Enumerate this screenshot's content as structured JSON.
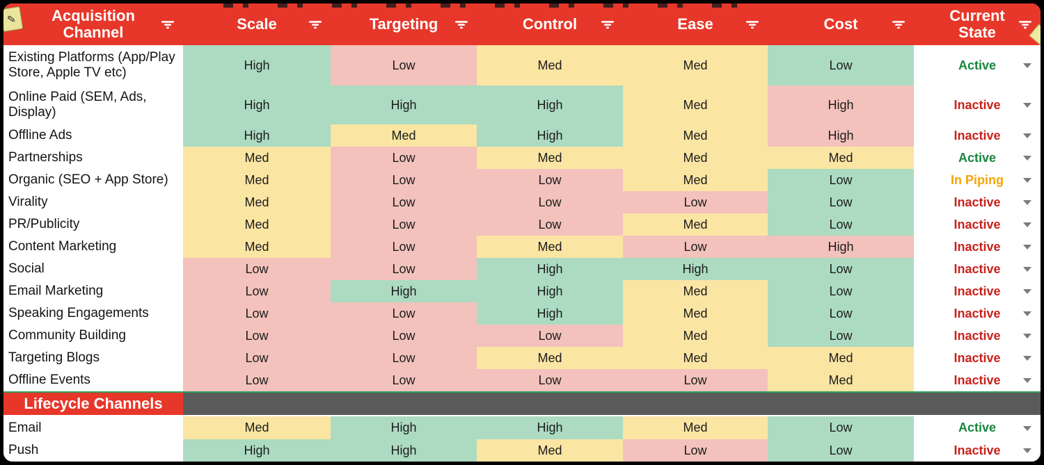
{
  "table": {
    "columns": [
      {
        "key": "channel",
        "label": "Acquisition Channel"
      },
      {
        "key": "scale",
        "label": "Scale"
      },
      {
        "key": "targeting",
        "label": "Targeting"
      },
      {
        "key": "control",
        "label": "Control"
      },
      {
        "key": "ease",
        "label": "Ease"
      },
      {
        "key": "cost",
        "label": "Cost"
      },
      {
        "key": "state",
        "label": "Current State"
      }
    ],
    "sections": [
      {
        "name": "acquisition-channels",
        "rows": [
          {
            "channel": "Existing Platforms (App/Play Store, Apple TV etc)",
            "ratings": [
              {
                "value": "High",
                "tone": "green"
              },
              {
                "value": "Low",
                "tone": "pink"
              },
              {
                "value": "Med",
                "tone": "yellow"
              },
              {
                "value": "Med",
                "tone": "yellow"
              },
              {
                "value": "Low",
                "tone": "green"
              }
            ],
            "state": {
              "label": "Active",
              "tone": "active"
            }
          },
          {
            "channel": "Online Paid (SEM, Ads, Display)",
            "ratings": [
              {
                "value": "High",
                "tone": "green"
              },
              {
                "value": "High",
                "tone": "green"
              },
              {
                "value": "High",
                "tone": "green"
              },
              {
                "value": "Med",
                "tone": "yellow"
              },
              {
                "value": "High",
                "tone": "pink"
              }
            ],
            "state": {
              "label": "Inactive",
              "tone": "inactive"
            }
          },
          {
            "channel": "Offline Ads",
            "ratings": [
              {
                "value": "High",
                "tone": "green"
              },
              {
                "value": "Med",
                "tone": "yellow"
              },
              {
                "value": "High",
                "tone": "green"
              },
              {
                "value": "Med",
                "tone": "yellow"
              },
              {
                "value": "High",
                "tone": "pink"
              }
            ],
            "state": {
              "label": "Inactive",
              "tone": "inactive"
            }
          },
          {
            "channel": "Partnerships",
            "ratings": [
              {
                "value": "Med",
                "tone": "yellow"
              },
              {
                "value": "Low",
                "tone": "pink"
              },
              {
                "value": "Med",
                "tone": "yellow"
              },
              {
                "value": "Med",
                "tone": "yellow"
              },
              {
                "value": "Med",
                "tone": "yellow"
              }
            ],
            "state": {
              "label": "Active",
              "tone": "active"
            }
          },
          {
            "channel": "Organic (SEO + App Store)",
            "ratings": [
              {
                "value": "Med",
                "tone": "yellow"
              },
              {
                "value": "Low",
                "tone": "pink"
              },
              {
                "value": "Low",
                "tone": "pink"
              },
              {
                "value": "Med",
                "tone": "yellow"
              },
              {
                "value": "Low",
                "tone": "green"
              }
            ],
            "state": {
              "label": "In Piping",
              "tone": "piping"
            }
          },
          {
            "channel": "Virality",
            "ratings": [
              {
                "value": "Med",
                "tone": "yellow"
              },
              {
                "value": "Low",
                "tone": "pink"
              },
              {
                "value": "Low",
                "tone": "pink"
              },
              {
                "value": "Low",
                "tone": "pink"
              },
              {
                "value": "Low",
                "tone": "green"
              }
            ],
            "state": {
              "label": "Inactive",
              "tone": "inactive"
            }
          },
          {
            "channel": "PR/Publicity",
            "ratings": [
              {
                "value": "Med",
                "tone": "yellow"
              },
              {
                "value": "Low",
                "tone": "pink"
              },
              {
                "value": "Low",
                "tone": "pink"
              },
              {
                "value": "Med",
                "tone": "yellow"
              },
              {
                "value": "Low",
                "tone": "green"
              }
            ],
            "state": {
              "label": "Inactive",
              "tone": "inactive"
            }
          },
          {
            "channel": "Content Marketing",
            "ratings": [
              {
                "value": "Med",
                "tone": "yellow"
              },
              {
                "value": "Low",
                "tone": "pink"
              },
              {
                "value": "Med",
                "tone": "yellow"
              },
              {
                "value": "Low",
                "tone": "pink"
              },
              {
                "value": "High",
                "tone": "pink"
              }
            ],
            "state": {
              "label": "Inactive",
              "tone": "inactive"
            }
          },
          {
            "channel": "Social",
            "ratings": [
              {
                "value": "Low",
                "tone": "pink"
              },
              {
                "value": "Low",
                "tone": "pink"
              },
              {
                "value": "High",
                "tone": "green"
              },
              {
                "value": "High",
                "tone": "green"
              },
              {
                "value": "Low",
                "tone": "green"
              }
            ],
            "state": {
              "label": "Inactive",
              "tone": "inactive"
            }
          },
          {
            "channel": "Email Marketing",
            "ratings": [
              {
                "value": "Low",
                "tone": "pink"
              },
              {
                "value": "High",
                "tone": "green"
              },
              {
                "value": "High",
                "tone": "green"
              },
              {
                "value": "Med",
                "tone": "yellow"
              },
              {
                "value": "Low",
                "tone": "green"
              }
            ],
            "state": {
              "label": "Inactive",
              "tone": "inactive"
            }
          },
          {
            "channel": "Speaking Engagements",
            "ratings": [
              {
                "value": "Low",
                "tone": "pink"
              },
              {
                "value": "Low",
                "tone": "pink"
              },
              {
                "value": "High",
                "tone": "green"
              },
              {
                "value": "Med",
                "tone": "yellow"
              },
              {
                "value": "Low",
                "tone": "green"
              }
            ],
            "state": {
              "label": "Inactive",
              "tone": "inactive"
            }
          },
          {
            "channel": "Community Building",
            "ratings": [
              {
                "value": "Low",
                "tone": "pink"
              },
              {
                "value": "Low",
                "tone": "pink"
              },
              {
                "value": "Low",
                "tone": "pink"
              },
              {
                "value": "Med",
                "tone": "yellow"
              },
              {
                "value": "Low",
                "tone": "green"
              }
            ],
            "state": {
              "label": "Inactive",
              "tone": "inactive"
            }
          },
          {
            "channel": "Targeting Blogs",
            "ratings": [
              {
                "value": "Low",
                "tone": "pink"
              },
              {
                "value": "Low",
                "tone": "pink"
              },
              {
                "value": "Med",
                "tone": "yellow"
              },
              {
                "value": "Med",
                "tone": "yellow"
              },
              {
                "value": "Med",
                "tone": "yellow"
              }
            ],
            "state": {
              "label": "Inactive",
              "tone": "inactive"
            }
          },
          {
            "channel": "Offline Events",
            "ratings": [
              {
                "value": "Low",
                "tone": "pink"
              },
              {
                "value": "Low",
                "tone": "pink"
              },
              {
                "value": "Low",
                "tone": "pink"
              },
              {
                "value": "Low",
                "tone": "pink"
              },
              {
                "value": "Med",
                "tone": "yellow"
              }
            ],
            "state": {
              "label": "Inactive",
              "tone": "inactive"
            }
          }
        ]
      },
      {
        "name": "lifecycle-channels",
        "band_label": "Lifecycle Channels",
        "rows": [
          {
            "channel": "Email",
            "ratings": [
              {
                "value": "Med",
                "tone": "yellow"
              },
              {
                "value": "High",
                "tone": "green"
              },
              {
                "value": "High",
                "tone": "green"
              },
              {
                "value": "Med",
                "tone": "yellow"
              },
              {
                "value": "Low",
                "tone": "green"
              }
            ],
            "state": {
              "label": "Active",
              "tone": "active"
            }
          },
          {
            "channel": "Push",
            "ratings": [
              {
                "value": "High",
                "tone": "green"
              },
              {
                "value": "High",
                "tone": "green"
              },
              {
                "value": "Med",
                "tone": "yellow"
              },
              {
                "value": "Low",
                "tone": "pink"
              },
              {
                "value": "Low",
                "tone": "green"
              }
            ],
            "state": {
              "label": "Inactive",
              "tone": "inactive"
            }
          }
        ]
      }
    ]
  },
  "colors": {
    "header_bg": "#e7372a",
    "cell_green": "#acdbc1",
    "cell_yellow": "#fbe5a3",
    "cell_pink": "#f3c2bc",
    "band_red": "#e7372a",
    "band_gray": "#5a5a5a",
    "band_divider_green": "#2ea05f",
    "state_active": "#17863c",
    "state_inactive": "#c8221b",
    "state_piping": "#f6a50a"
  },
  "icons": {
    "note_glyph": "✎"
  }
}
